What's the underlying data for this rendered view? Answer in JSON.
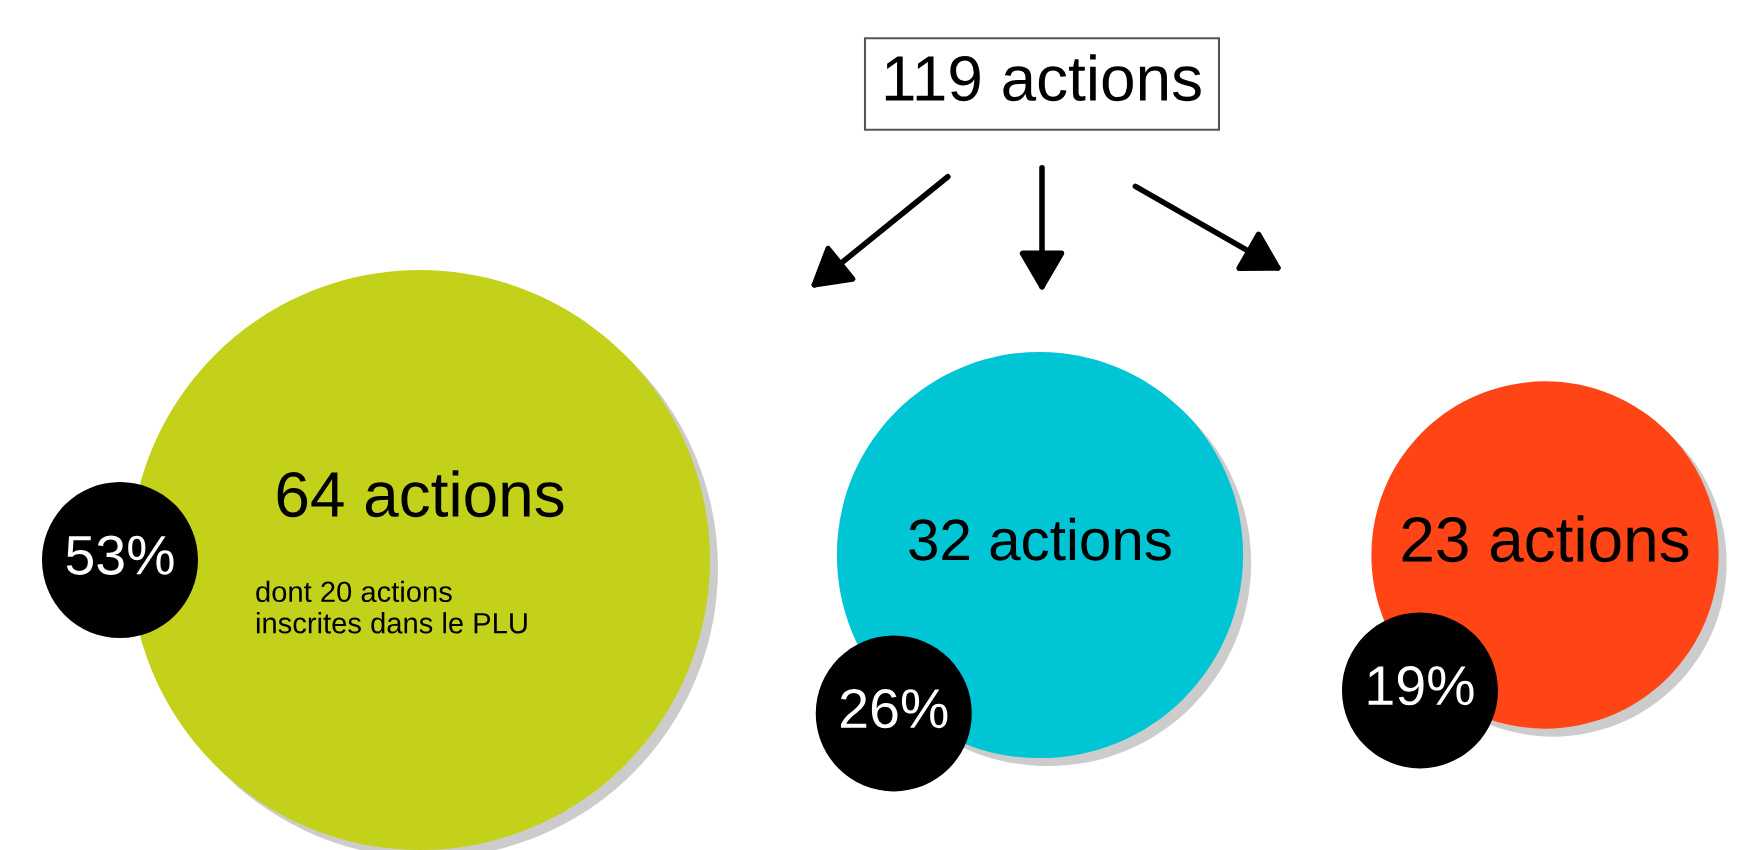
{
  "chart_data": {
    "type": "other",
    "title": "119 actions",
    "categories": [
      null,
      null,
      null
    ],
    "values": [
      53,
      26,
      19
    ],
    "value_labels": [
      "53%",
      "26%",
      "19%"
    ],
    "colors": [
      "#c3d11a",
      "#00c5d4",
      "#ff4516"
    ],
    "annotations": [
      "64 actions",
      "32 actions",
      "23 actions",
      "dont 20 actions\ninscrites dans le PLU"
    ]
  }
}
